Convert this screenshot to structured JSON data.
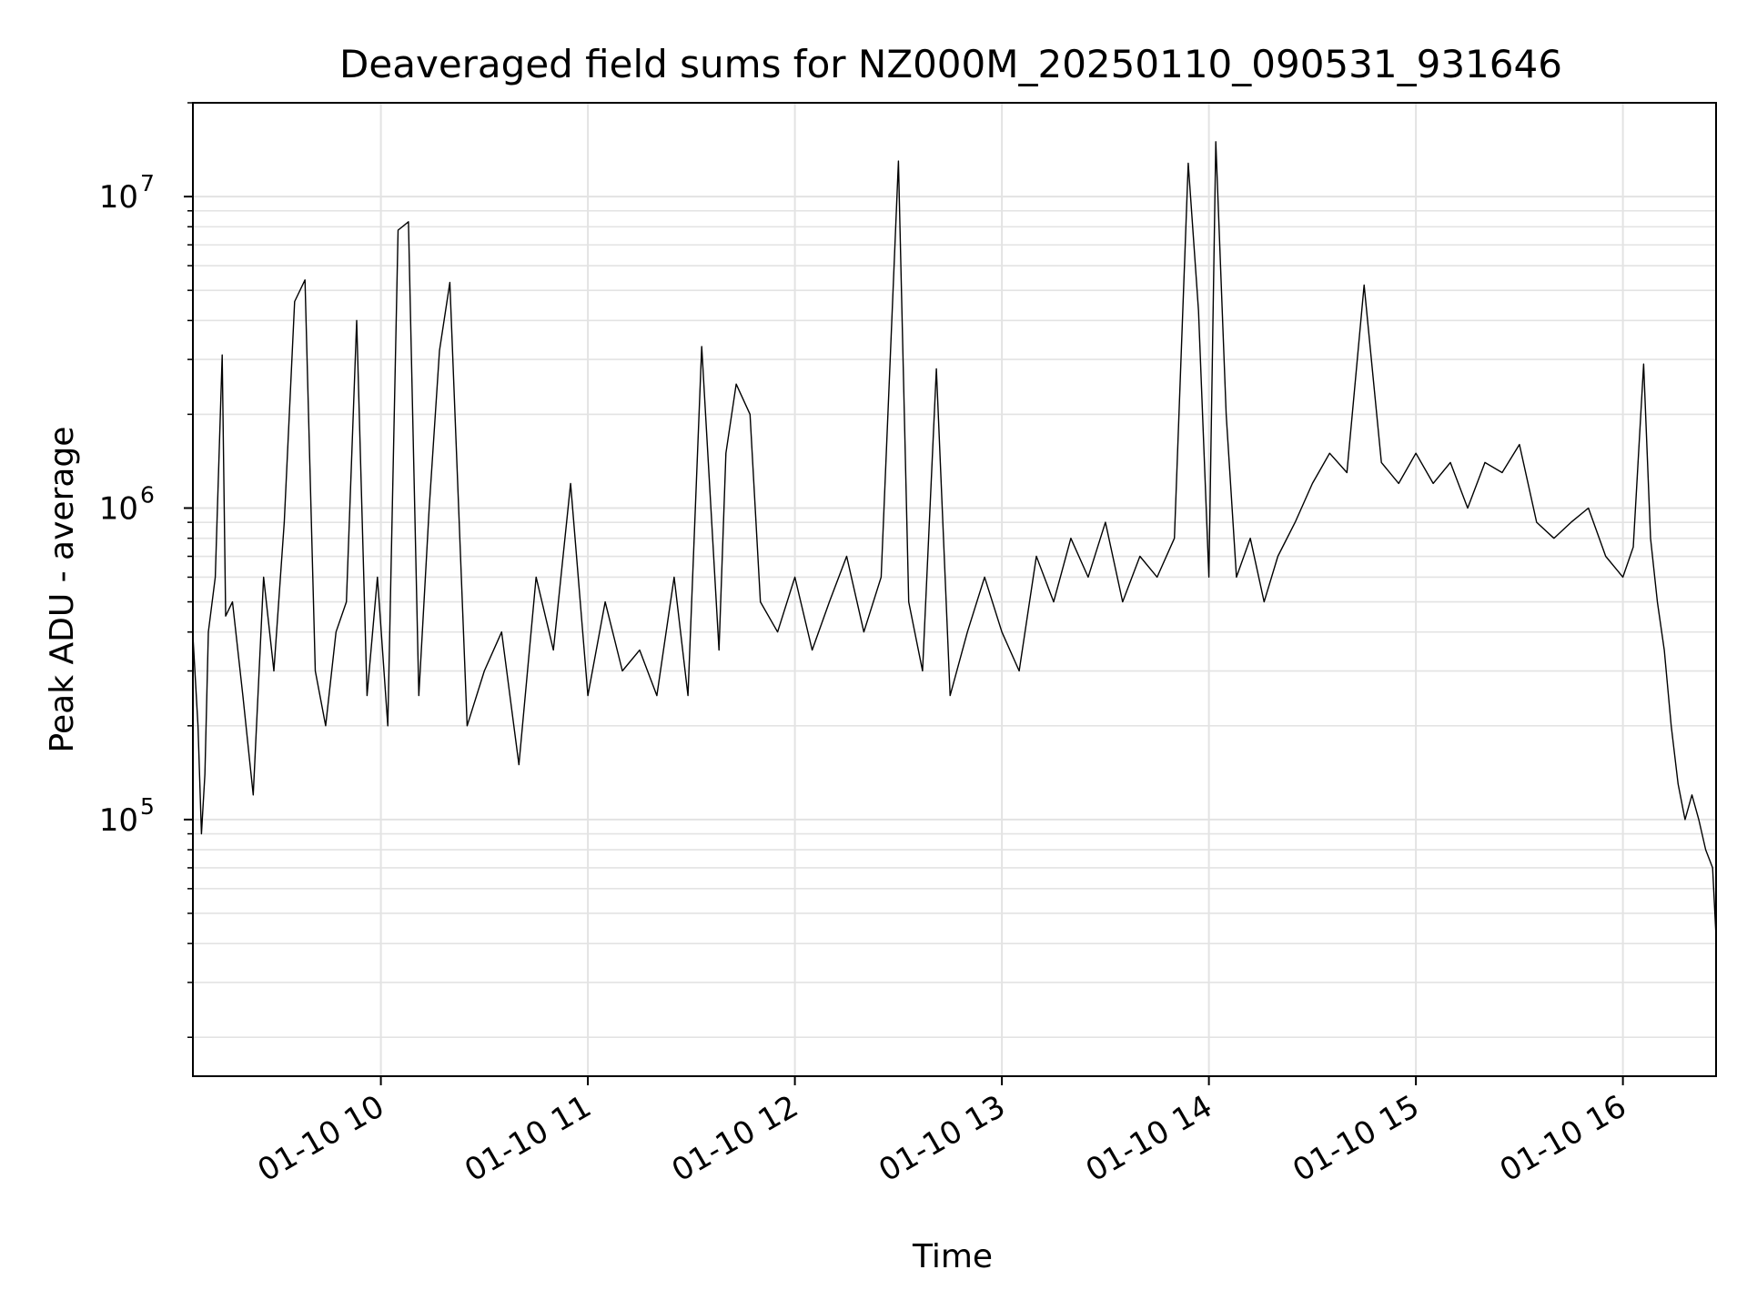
{
  "chart_data": {
    "type": "line",
    "title": "Deaveraged field sums for NZ000M_20250110_090531_931646",
    "xlabel": "Time",
    "ylabel": "Peak ADU - average",
    "y_scale": "log",
    "ylim": [
      15000,
      20000000
    ],
    "xlim": [
      "2025-01-10 09:05:31",
      "2025-01-10 16:27:00"
    ],
    "x_ticks": [
      {
        "value": "2025-01-10 10:00",
        "label": "01-10 10"
      },
      {
        "value": "2025-01-10 11:00",
        "label": "01-10 11"
      },
      {
        "value": "2025-01-10 12:00",
        "label": "01-10 12"
      },
      {
        "value": "2025-01-10 13:00",
        "label": "01-10 13"
      },
      {
        "value": "2025-01-10 14:00",
        "label": "01-10 14"
      },
      {
        "value": "2025-01-10 15:00",
        "label": "01-10 15"
      },
      {
        "value": "2025-01-10 16:00",
        "label": "01-10 16"
      }
    ],
    "y_ticks": [
      {
        "value": 100000,
        "base": "10",
        "exp": "5"
      },
      {
        "value": 1000000,
        "base": "10",
        "exp": "6"
      },
      {
        "value": 10000000,
        "base": "10",
        "exp": "7"
      }
    ],
    "grid": true,
    "line_color": "#000000",
    "grid_color": "#e3e3e3",
    "series": [
      {
        "x": [
          "2025-01-10 09:05:31",
          "2025-01-10 09:07:00",
          "2025-01-10 09:08:00",
          "2025-01-10 09:09:00",
          "2025-01-10 09:10:00",
          "2025-01-10 09:12:00",
          "2025-01-10 09:14:00",
          "2025-01-10 09:15:00",
          "2025-01-10 09:17:00",
          "2025-01-10 09:20:00",
          "2025-01-10 09:23:00",
          "2025-01-10 09:26:00",
          "2025-01-10 09:29:00",
          "2025-01-10 09:32:00",
          "2025-01-10 09:35:00",
          "2025-01-10 09:38:00",
          "2025-01-10 09:41:00",
          "2025-01-10 09:44:00",
          "2025-01-10 09:47:00",
          "2025-01-10 09:50:00",
          "2025-01-10 09:53:00",
          "2025-01-10 09:56:00",
          "2025-01-10 09:59:00",
          "2025-01-10 10:02:00",
          "2025-01-10 10:05:00",
          "2025-01-10 10:08:00",
          "2025-01-10 10:11:00",
          "2025-01-10 10:14:00",
          "2025-01-10 10:17:00",
          "2025-01-10 10:20:00",
          "2025-01-10 10:25:00",
          "2025-01-10 10:30:00",
          "2025-01-10 10:35:00",
          "2025-01-10 10:40:00",
          "2025-01-10 10:45:00",
          "2025-01-10 10:50:00",
          "2025-01-10 10:55:00",
          "2025-01-10 11:00:00",
          "2025-01-10 11:05:00",
          "2025-01-10 11:10:00",
          "2025-01-10 11:15:00",
          "2025-01-10 11:20:00",
          "2025-01-10 11:25:00",
          "2025-01-10 11:29:00",
          "2025-01-10 11:33:00",
          "2025-01-10 11:38:00",
          "2025-01-10 11:40:00",
          "2025-01-10 11:43:00",
          "2025-01-10 11:47:00",
          "2025-01-10 11:50:00",
          "2025-01-10 11:55:00",
          "2025-01-10 12:00:00",
          "2025-01-10 12:05:00",
          "2025-01-10 12:10:00",
          "2025-01-10 12:15:00",
          "2025-01-10 12:20:00",
          "2025-01-10 12:25:00",
          "2025-01-10 12:30:00",
          "2025-01-10 12:33:00",
          "2025-01-10 12:37:00",
          "2025-01-10 12:41:00",
          "2025-01-10 12:45:00",
          "2025-01-10 12:50:00",
          "2025-01-10 12:55:00",
          "2025-01-10 13:00:00",
          "2025-01-10 13:05:00",
          "2025-01-10 13:10:00",
          "2025-01-10 13:15:00",
          "2025-01-10 13:20:00",
          "2025-01-10 13:25:00",
          "2025-01-10 13:30:00",
          "2025-01-10 13:35:00",
          "2025-01-10 13:40:00",
          "2025-01-10 13:45:00",
          "2025-01-10 13:50:00",
          "2025-01-10 13:54:00",
          "2025-01-10 13:57:00",
          "2025-01-10 14:00:00",
          "2025-01-10 14:02:00",
          "2025-01-10 14:05:00",
          "2025-01-10 14:08:00",
          "2025-01-10 14:12:00",
          "2025-01-10 14:16:00",
          "2025-01-10 14:20:00",
          "2025-01-10 14:25:00",
          "2025-01-10 14:30:00",
          "2025-01-10 14:35:00",
          "2025-01-10 14:40:00",
          "2025-01-10 14:45:00",
          "2025-01-10 14:50:00",
          "2025-01-10 14:55:00",
          "2025-01-10 15:00:00",
          "2025-01-10 15:05:00",
          "2025-01-10 15:10:00",
          "2025-01-10 15:15:00",
          "2025-01-10 15:20:00",
          "2025-01-10 15:25:00",
          "2025-01-10 15:30:00",
          "2025-01-10 15:35:00",
          "2025-01-10 15:40:00",
          "2025-01-10 15:45:00",
          "2025-01-10 15:50:00",
          "2025-01-10 15:55:00",
          "2025-01-10 16:00:00",
          "2025-01-10 16:03:00",
          "2025-01-10 16:06:00",
          "2025-01-10 16:08:00",
          "2025-01-10 16:10:00",
          "2025-01-10 16:12:00",
          "2025-01-10 16:14:00",
          "2025-01-10 16:16:00",
          "2025-01-10 16:18:00",
          "2025-01-10 16:20:00",
          "2025-01-10 16:22:00",
          "2025-01-10 16:24:00",
          "2025-01-10 16:26:00",
          "2025-01-10 16:27:00"
        ],
        "y": [
          390000,
          200000,
          90000,
          140000,
          400000,
          600000,
          3100000,
          450000,
          500000,
          250000,
          120000,
          600000,
          300000,
          900000,
          4600000,
          5400000,
          300000,
          200000,
          400000,
          500000,
          4000000,
          250000,
          600000,
          200000,
          7800000,
          8300000,
          250000,
          1000000,
          3200000,
          5300000,
          200000,
          300000,
          400000,
          150000,
          600000,
          350000,
          1200000,
          250000,
          500000,
          300000,
          350000,
          250000,
          600000,
          250000,
          3300000,
          350000,
          1500000,
          2500000,
          2000000,
          500000,
          400000,
          600000,
          350000,
          500000,
          700000,
          400000,
          600000,
          13000000,
          500000,
          300000,
          2800000,
          250000,
          400000,
          600000,
          400000,
          300000,
          700000,
          500000,
          800000,
          600000,
          900000,
          500000,
          700000,
          600000,
          800000,
          12800000,
          4300000,
          600000,
          15000000,
          2000000,
          600000,
          800000,
          500000,
          700000,
          900000,
          1200000,
          1500000,
          1300000,
          5200000,
          1400000,
          1200000,
          1500000,
          1200000,
          1400000,
          1000000,
          1400000,
          1300000,
          1600000,
          900000,
          800000,
          900000,
          1000000,
          700000,
          600000,
          750000,
          2900000,
          800000,
          500000,
          350000,
          200000,
          130000,
          100000,
          120000,
          100000,
          80000,
          70000,
          42000
        ]
      }
    ]
  }
}
